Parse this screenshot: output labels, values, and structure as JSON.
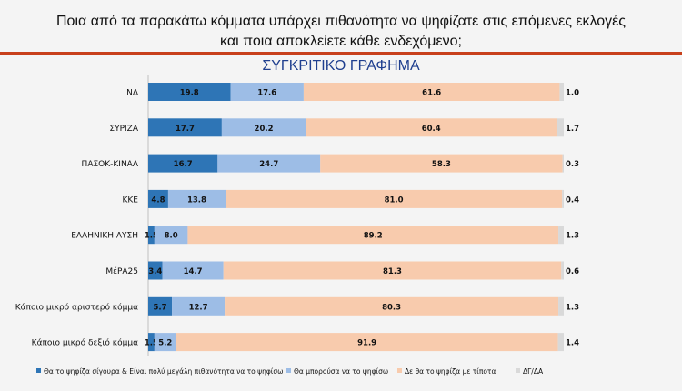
{
  "header": {
    "line1": "Ποια από τα παρακάτω κόμματα υπάρχει πιθανότητα να ψηφίζατε στις επόμενες εκλογές",
    "line2": "και ποια αποκλείετε κάθε ενδεχόμενο;"
  },
  "chart_data": {
    "type": "bar",
    "orientation": "horizontal-stacked-100",
    "title": "ΣΥΓΚΡΙΤΙΚΟ ΓΡΑΦΗΜΑ",
    "categories": [
      "ΝΔ",
      "ΣΥΡΙΖΑ",
      "ΠΑΣΟΚ-ΚΙΝΑΛ",
      "ΚΚΕ",
      "ΕΛΛΗΝΙΚΗ ΛΥΣΗ",
      "ΜέΡΑ25",
      "Κάποιο μικρό αριστερό κόμμα",
      "Κάποιο μικρό δεξιό κόμμα"
    ],
    "series": [
      {
        "name": "Θα το ψηφίζα σίγουρα & Είναι πολύ μεγάλη πιθανότητα να το ψηφίσω",
        "color": "#2e75b6",
        "values": [
          19.8,
          17.7,
          16.7,
          4.8,
          1.5,
          3.4,
          5.7,
          1.5
        ]
      },
      {
        "name": "Θα μπορούσα να το ψηφίσω",
        "color": "#9dbde6",
        "values": [
          17.6,
          20.2,
          24.7,
          13.8,
          8.0,
          14.7,
          12.7,
          5.2
        ]
      },
      {
        "name": "Δε θα το ψηφίζα με τίποτα",
        "color": "#f8cbad",
        "values": [
          61.6,
          60.4,
          58.3,
          81.0,
          89.2,
          81.3,
          80.3,
          91.9
        ]
      },
      {
        "name": "ΔΓ/ΔΑ",
        "color": "#d9d9d9",
        "values": [
          1.0,
          1.7,
          0.3,
          0.4,
          1.3,
          0.6,
          1.3,
          1.4
        ]
      }
    ],
    "legend": "bottom",
    "grid": false
  }
}
